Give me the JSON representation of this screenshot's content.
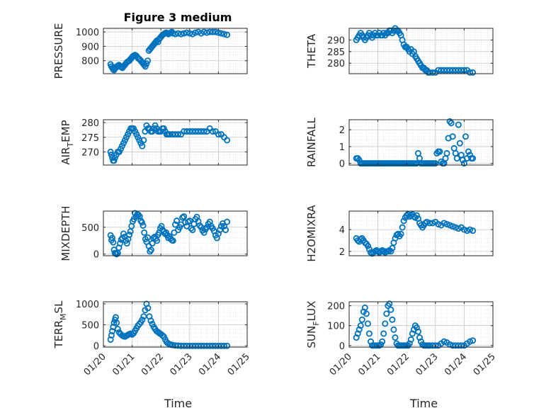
{
  "figure_title": "Figure 3 medium",
  "colors": {
    "marker": "#0072BD",
    "axes": "#262626",
    "grid": "#dcdcdc"
  },
  "chart_data": [
    {
      "type": "scatter",
      "name": "PRESSURE",
      "ylabel": {
        "main": "PRESSURE",
        "sub": ""
      },
      "xlabel": "",
      "yticks": [
        800,
        900,
        1000
      ],
      "ylim": [
        710,
        1025
      ],
      "xticks": [
        "01/20",
        "01/21",
        "01/22",
        "01/23",
        "01/24",
        "01/25"
      ],
      "xlim": [
        0,
        5
      ],
      "grid": true,
      "x": [
        0.25,
        0.28,
        0.31,
        0.34,
        0.37,
        0.4,
        0.43,
        0.46,
        0.5,
        0.54,
        0.58,
        0.62,
        0.66,
        0.7,
        0.74,
        0.78,
        0.82,
        0.86,
        0.9,
        0.94,
        0.98,
        1.02,
        1.06,
        1.1,
        1.14,
        1.18,
        1.22,
        1.26,
        1.3,
        1.34,
        1.38,
        1.42,
        1.46,
        1.5,
        1.54,
        1.58,
        1.62,
        1.66,
        1.7,
        1.74,
        1.78,
        1.82,
        1.86,
        1.9,
        1.94,
        1.98,
        2.02,
        2.06,
        2.1,
        2.14,
        2.18,
        2.22,
        2.26,
        2.3,
        2.34,
        2.38,
        2.42,
        2.5,
        2.6,
        2.7,
        2.8,
        2.9,
        3.0,
        3.1,
        3.2,
        3.3,
        3.4,
        3.5,
        3.6,
        3.7,
        3.8,
        3.9,
        4.0,
        4.1,
        4.2,
        4.3
      ],
      "y": [
        775,
        760,
        750,
        740,
        735,
        745,
        750,
        760,
        765,
        770,
        760,
        755,
        750,
        760,
        770,
        780,
        790,
        795,
        800,
        810,
        820,
        830,
        835,
        840,
        835,
        825,
        815,
        810,
        800,
        790,
        780,
        770,
        760,
        780,
        800,
        870,
        880,
        890,
        900,
        910,
        920,
        930,
        940,
        930,
        950,
        960,
        970,
        980,
        985,
        990,
        995,
        990,
        985,
        990,
        995,
        1000,
        990,
        985,
        990,
        985,
        990,
        995,
        990,
        985,
        995,
        1000,
        990,
        1000,
        995,
        1000,
        1000,
        1000,
        995,
        990,
        985,
        980
      ]
    },
    {
      "type": "scatter",
      "name": "THETA",
      "ylabel": {
        "main": "THETA",
        "sub": ""
      },
      "xlabel": "",
      "yticks": [
        280,
        285,
        290
      ],
      "ylim": [
        275.5,
        295
      ],
      "xticks": [
        "01/20",
        "01/21",
        "01/22",
        "01/23",
        "01/24",
        "01/25"
      ],
      "xlim": [
        0,
        5
      ],
      "grid": true,
      "x": [
        0.25,
        0.3,
        0.35,
        0.4,
        0.45,
        0.5,
        0.55,
        0.6,
        0.65,
        0.7,
        0.75,
        0.8,
        0.85,
        0.9,
        0.95,
        1.0,
        1.05,
        1.1,
        1.15,
        1.2,
        1.25,
        1.3,
        1.35,
        1.4,
        1.45,
        1.5,
        1.55,
        1.6,
        1.65,
        1.7,
        1.75,
        1.8,
        1.85,
        1.9,
        1.95,
        2.0,
        2.05,
        2.1,
        2.15,
        2.2,
        2.25,
        2.3,
        2.35,
        2.4,
        2.45,
        2.5,
        2.55,
        2.6,
        2.65,
        2.7,
        2.75,
        2.8,
        2.9,
        3.0,
        3.1,
        3.2,
        3.3,
        3.4,
        3.5,
        3.6,
        3.7,
        3.8,
        3.9,
        4.0,
        4.1,
        4.2,
        4.3
      ],
      "y": [
        290,
        291,
        292,
        293,
        292,
        291,
        290,
        291,
        292,
        293,
        292,
        291,
        292,
        293,
        292,
        292,
        293,
        292,
        292,
        293,
        292,
        293,
        293,
        294,
        294,
        293,
        294,
        295,
        294,
        294,
        293,
        292,
        290,
        288,
        287,
        287,
        286,
        285,
        286,
        284,
        285,
        283,
        282,
        281,
        280,
        279,
        278,
        278,
        277,
        277,
        276,
        276,
        276,
        276,
        277,
        277,
        277,
        277,
        277,
        277,
        277,
        277,
        277,
        277,
        277,
        276,
        276
      ]
    },
    {
      "type": "scatter",
      "name": "AIR_TEMP",
      "ylabel": {
        "main": "AIR",
        "sub": "T",
        "rest": "EMP"
      },
      "xlabel": "",
      "yticks": [
        270,
        275,
        280
      ],
      "ylim": [
        265.5,
        281
      ],
      "xticks": [
        "01/20",
        "01/21",
        "01/22",
        "01/23",
        "01/24",
        "01/25"
      ],
      "xlim": [
        0,
        5
      ],
      "grid": true,
      "x": [
        0.25,
        0.28,
        0.31,
        0.34,
        0.37,
        0.4,
        0.45,
        0.5,
        0.55,
        0.6,
        0.65,
        0.7,
        0.75,
        0.8,
        0.85,
        0.9,
        0.95,
        1.0,
        1.05,
        1.1,
        1.15,
        1.2,
        1.25,
        1.3,
        1.35,
        1.4,
        1.45,
        1.5,
        1.55,
        1.6,
        1.65,
        1.7,
        1.75,
        1.8,
        1.85,
        1.9,
        1.95,
        2.0,
        2.05,
        2.1,
        2.15,
        2.2,
        2.25,
        2.3,
        2.4,
        2.5,
        2.6,
        2.7,
        2.8,
        2.9,
        3.0,
        3.1,
        3.2,
        3.3,
        3.4,
        3.5,
        3.6,
        3.7,
        3.8,
        3.9,
        4.0,
        4.1,
        4.2,
        4.3
      ],
      "y": [
        270,
        269,
        268,
        267,
        267,
        268,
        269,
        270,
        270,
        271,
        272,
        273,
        274,
        275,
        276,
        277,
        278,
        278,
        278,
        277,
        276,
        275,
        274,
        273,
        272,
        274,
        277,
        279,
        278,
        278,
        277,
        277,
        278,
        279,
        278,
        277,
        277,
        277,
        278,
        278,
        277,
        276,
        276,
        276,
        276,
        276,
        276,
        276,
        277,
        277,
        277,
        277,
        277,
        277,
        277,
        277,
        277,
        278,
        277,
        277,
        276,
        276,
        275,
        274
      ]
    },
    {
      "type": "scatter",
      "name": "RAINFALL",
      "ylabel": {
        "main": "RAINFALL",
        "sub": ""
      },
      "xlabel": "",
      "yticks": [
        0,
        1,
        2
      ],
      "ylim": [
        -0.1,
        2.6
      ],
      "xticks": [
        "01/20",
        "01/21",
        "01/22",
        "01/23",
        "01/24",
        "01/25"
      ],
      "xlim": [
        0,
        5
      ],
      "grid": true,
      "x": [
        0.25,
        0.3,
        0.35,
        0.4,
        0.45,
        0.5,
        0.55,
        0.6,
        0.65,
        0.7,
        0.75,
        0.8,
        0.85,
        0.9,
        0.95,
        1.0,
        1.05,
        1.1,
        1.15,
        1.2,
        1.25,
        1.3,
        1.35,
        1.4,
        1.45,
        1.5,
        1.55,
        1.6,
        1.65,
        1.7,
        1.75,
        1.8,
        1.85,
        1.9,
        1.95,
        2.0,
        2.05,
        2.1,
        2.15,
        2.2,
        2.25,
        2.3,
        2.35,
        2.4,
        2.45,
        2.5,
        2.55,
        2.6,
        2.65,
        2.7,
        2.75,
        2.8,
        2.85,
        2.9,
        2.95,
        3.0,
        3.05,
        3.1,
        3.15,
        3.2,
        3.25,
        3.3,
        3.35,
        3.4,
        3.45,
        3.5,
        3.55,
        3.6,
        3.65,
        3.7,
        3.75,
        3.8,
        3.85,
        3.9,
        3.95,
        4.0,
        4.05,
        4.1,
        4.15,
        4.2,
        4.25,
        4.3
      ],
      "y": [
        0.3,
        0.3,
        0.2,
        0,
        0,
        0,
        0,
        0,
        0,
        0,
        0,
        0,
        0,
        0,
        0,
        0,
        0,
        0,
        0,
        0,
        0,
        0,
        0,
        0,
        0,
        0,
        0,
        0,
        0,
        0,
        0,
        0,
        0,
        0,
        0,
        0,
        0,
        0,
        0,
        0,
        0,
        0,
        0,
        0.6,
        0.3,
        0,
        0,
        0,
        0,
        0,
        0,
        0,
        0,
        0,
        0,
        0,
        0.6,
        0.7,
        0.7,
        0.1,
        0,
        0,
        0.3,
        0.6,
        1.5,
        2.5,
        2.4,
        1.6,
        0.9,
        0.6,
        0.3,
        2.3,
        1.2,
        0.5,
        0.2,
        0,
        1.6,
        0.3,
        0.7,
        0.5,
        0.3,
        0.3
      ]
    },
    {
      "type": "scatter",
      "name": "MIXDEPTH",
      "ylabel": {
        "main": "MIXDEPTH",
        "sub": ""
      },
      "xlabel": "",
      "yticks": [
        0,
        500
      ],
      "ylim": [
        -30,
        800
      ],
      "xticks": [
        "01/20",
        "01/21",
        "01/22",
        "01/23",
        "01/24",
        "01/25"
      ],
      "xlim": [
        0,
        5
      ],
      "grid": true,
      "x": [
        0.25,
        0.28,
        0.31,
        0.34,
        0.37,
        0.4,
        0.43,
        0.46,
        0.5,
        0.54,
        0.58,
        0.62,
        0.66,
        0.7,
        0.74,
        0.78,
        0.82,
        0.86,
        0.9,
        0.94,
        0.98,
        1.02,
        1.06,
        1.1,
        1.14,
        1.18,
        1.22,
        1.26,
        1.3,
        1.34,
        1.38,
        1.42,
        1.46,
        1.5,
        1.54,
        1.58,
        1.62,
        1.66,
        1.7,
        1.74,
        1.78,
        1.82,
        1.86,
        1.9,
        1.94,
        1.98,
        2.02,
        2.06,
        2.1,
        2.14,
        2.18,
        2.22,
        2.26,
        2.3,
        2.34,
        2.38,
        2.42,
        2.46,
        2.5,
        2.55,
        2.6,
        2.65,
        2.7,
        2.75,
        2.8,
        2.85,
        2.9,
        2.95,
        3.0,
        3.05,
        3.1,
        3.15,
        3.2,
        3.25,
        3.3,
        3.35,
        3.4,
        3.45,
        3.5,
        3.55,
        3.6,
        3.65,
        3.7,
        3.75,
        3.8,
        3.85,
        3.9,
        3.95,
        4.0,
        4.05,
        4.1,
        4.15,
        4.2,
        4.25,
        4.3
      ],
      "y": [
        350,
        260,
        300,
        220,
        80,
        20,
        10,
        0,
        20,
        120,
        200,
        270,
        300,
        380,
        320,
        250,
        200,
        280,
        360,
        420,
        520,
        610,
        650,
        760,
        700,
        740,
        730,
        700,
        620,
        590,
        530,
        400,
        280,
        230,
        310,
        150,
        50,
        80,
        200,
        300,
        320,
        290,
        250,
        360,
        400,
        480,
        520,
        450,
        420,
        380,
        400,
        350,
        300,
        330,
        290,
        260,
        250,
        400,
        550,
        620,
        450,
        500,
        550,
        680,
        700,
        590,
        520,
        600,
        620,
        480,
        450,
        560,
        650,
        690,
        610,
        530,
        500,
        440,
        400,
        460,
        500,
        560,
        600,
        520,
        480,
        430,
        350,
        300,
        380,
        450,
        520,
        570,
        520,
        450,
        600
      ]
    },
    {
      "type": "scatter",
      "name": "H2OMIXRA",
      "ylabel": {
        "main": "H2OMIXRA",
        "sub": ""
      },
      "xlabel": "",
      "yticks": [
        2,
        4
      ],
      "ylim": [
        1.6,
        5.7
      ],
      "xticks": [
        "01/20",
        "01/21",
        "01/22",
        "01/23",
        "01/24",
        "01/25"
      ],
      "xlim": [
        0,
        5
      ],
      "grid": true,
      "x": [
        0.25,
        0.3,
        0.35,
        0.4,
        0.45,
        0.5,
        0.55,
        0.6,
        0.65,
        0.7,
        0.75,
        0.8,
        0.85,
        0.9,
        0.95,
        1.0,
        1.05,
        1.1,
        1.15,
        1.2,
        1.25,
        1.3,
        1.35,
        1.4,
        1.45,
        1.5,
        1.55,
        1.6,
        1.65,
        1.7,
        1.75,
        1.8,
        1.85,
        1.9,
        1.95,
        2.0,
        2.05,
        2.1,
        2.15,
        2.2,
        2.25,
        2.3,
        2.35,
        2.4,
        2.45,
        2.5,
        2.55,
        2.6,
        2.65,
        2.7,
        2.8,
        2.9,
        3.0,
        3.1,
        3.2,
        3.3,
        3.4,
        3.5,
        3.6,
        3.7,
        3.8,
        3.9,
        4.0,
        4.1,
        4.2,
        4.3
      ],
      "y": [
        3.2,
        3.0,
        2.9,
        3.1,
        3.2,
        3.0,
        2.8,
        2.7,
        2.5,
        2.2,
        1.9,
        1.8,
        1.9,
        2.0,
        2.1,
        2.0,
        1.9,
        2.0,
        2.1,
        2.0,
        1.9,
        2.0,
        2.0,
        2.1,
        2.0,
        2.3,
        2.8,
        3.2,
        3.5,
        3.6,
        3.4,
        3.6,
        4.2,
        4.8,
        5.1,
        5.3,
        5.4,
        5.2,
        5.3,
        5.4,
        5.2,
        5.1,
        5.3,
        5.0,
        4.6,
        4.4,
        4.2,
        4.4,
        4.6,
        4.7,
        4.6,
        4.6,
        4.7,
        4.5,
        4.4,
        4.6,
        4.5,
        4.4,
        4.3,
        4.2,
        4.1,
        4.2,
        4.0,
        3.9,
        4.0,
        3.9
      ]
    },
    {
      "type": "scatter",
      "name": "TERR_MSL",
      "ylabel": {
        "main": "TERR",
        "sub": "M",
        "rest": "SL"
      },
      "xlabel": "Time",
      "yticks": [
        0,
        500,
        1000
      ],
      "ylim": [
        -30,
        1050
      ],
      "xticks": [
        "01/20",
        "01/21",
        "01/22",
        "01/23",
        "01/24",
        "01/25"
      ],
      "xlim": [
        0,
        5
      ],
      "grid": true,
      "x": [
        0.25,
        0.28,
        0.31,
        0.34,
        0.37,
        0.4,
        0.43,
        0.46,
        0.5,
        0.55,
        0.6,
        0.65,
        0.7,
        0.75,
        0.8,
        0.85,
        0.9,
        0.95,
        1.0,
        1.05,
        1.1,
        1.15,
        1.2,
        1.25,
        1.3,
        1.35,
        1.4,
        1.45,
        1.5,
        1.55,
        1.6,
        1.65,
        1.7,
        1.75,
        1.8,
        1.85,
        1.9,
        1.95,
        2.0,
        2.05,
        2.1,
        2.15,
        2.2,
        2.25,
        2.3,
        2.35,
        2.4,
        2.5,
        2.6,
        2.7,
        2.8,
        2.9,
        3.0,
        3.1,
        3.2,
        3.3,
        3.4,
        3.5,
        3.6,
        3.7,
        3.8,
        3.9,
        4.0,
        4.1,
        4.2,
        4.3
      ],
      "y": [
        150,
        250,
        350,
        450,
        550,
        620,
        680,
        550,
        400,
        320,
        280,
        250,
        230,
        220,
        240,
        260,
        280,
        290,
        270,
        300,
        360,
        420,
        480,
        520,
        560,
        620,
        700,
        850,
        1000,
        900,
        700,
        600,
        520,
        450,
        400,
        350,
        330,
        300,
        280,
        250,
        220,
        150,
        90,
        60,
        40,
        30,
        20,
        10,
        5,
        0,
        0,
        0,
        0,
        0,
        0,
        0,
        0,
        0,
        0,
        0,
        0,
        0,
        0,
        0,
        0,
        0
      ]
    },
    {
      "type": "scatter",
      "name": "SUN_FLUX",
      "ylabel": {
        "main": "SUN",
        "sub": "F",
        "rest": "LUX"
      },
      "xlabel": "Time",
      "yticks": [
        0,
        100,
        200
      ],
      "ylim": [
        -8,
        220
      ],
      "xticks": [
        "01/20",
        "01/21",
        "01/22",
        "01/23",
        "01/24",
        "01/25"
      ],
      "xlim": [
        0,
        5
      ],
      "grid": true,
      "x": [
        0.25,
        0.3,
        0.35,
        0.4,
        0.45,
        0.5,
        0.55,
        0.6,
        0.65,
        0.7,
        0.75,
        0.8,
        0.85,
        0.9,
        0.95,
        1.0,
        1.05,
        1.1,
        1.15,
        1.2,
        1.25,
        1.3,
        1.35,
        1.4,
        1.45,
        1.5,
        1.55,
        1.6,
        1.65,
        1.7,
        1.75,
        1.8,
        1.85,
        1.9,
        1.95,
        2.0,
        2.05,
        2.1,
        2.15,
        2.2,
        2.25,
        2.3,
        2.35,
        2.4,
        2.45,
        2.5,
        2.55,
        2.6,
        2.65,
        2.7,
        2.75,
        2.8,
        2.9,
        3.0,
        3.1,
        3.2,
        3.3,
        3.4,
        3.5,
        3.6,
        3.7,
        3.8,
        3.9,
        4.0,
        4.1,
        4.2,
        4.3
      ],
      "y": [
        40,
        60,
        80,
        100,
        130,
        170,
        190,
        160,
        110,
        60,
        20,
        0,
        0,
        0,
        0,
        0,
        0,
        5,
        20,
        60,
        110,
        160,
        200,
        210,
        180,
        130,
        80,
        40,
        10,
        0,
        0,
        0,
        0,
        0,
        0,
        0,
        0,
        10,
        30,
        60,
        80,
        100,
        90,
        70,
        40,
        20,
        5,
        0,
        0,
        0,
        0,
        0,
        0,
        0,
        0,
        10,
        20,
        15,
        5,
        0,
        0,
        0,
        0,
        0,
        10,
        20,
        25
      ]
    }
  ]
}
